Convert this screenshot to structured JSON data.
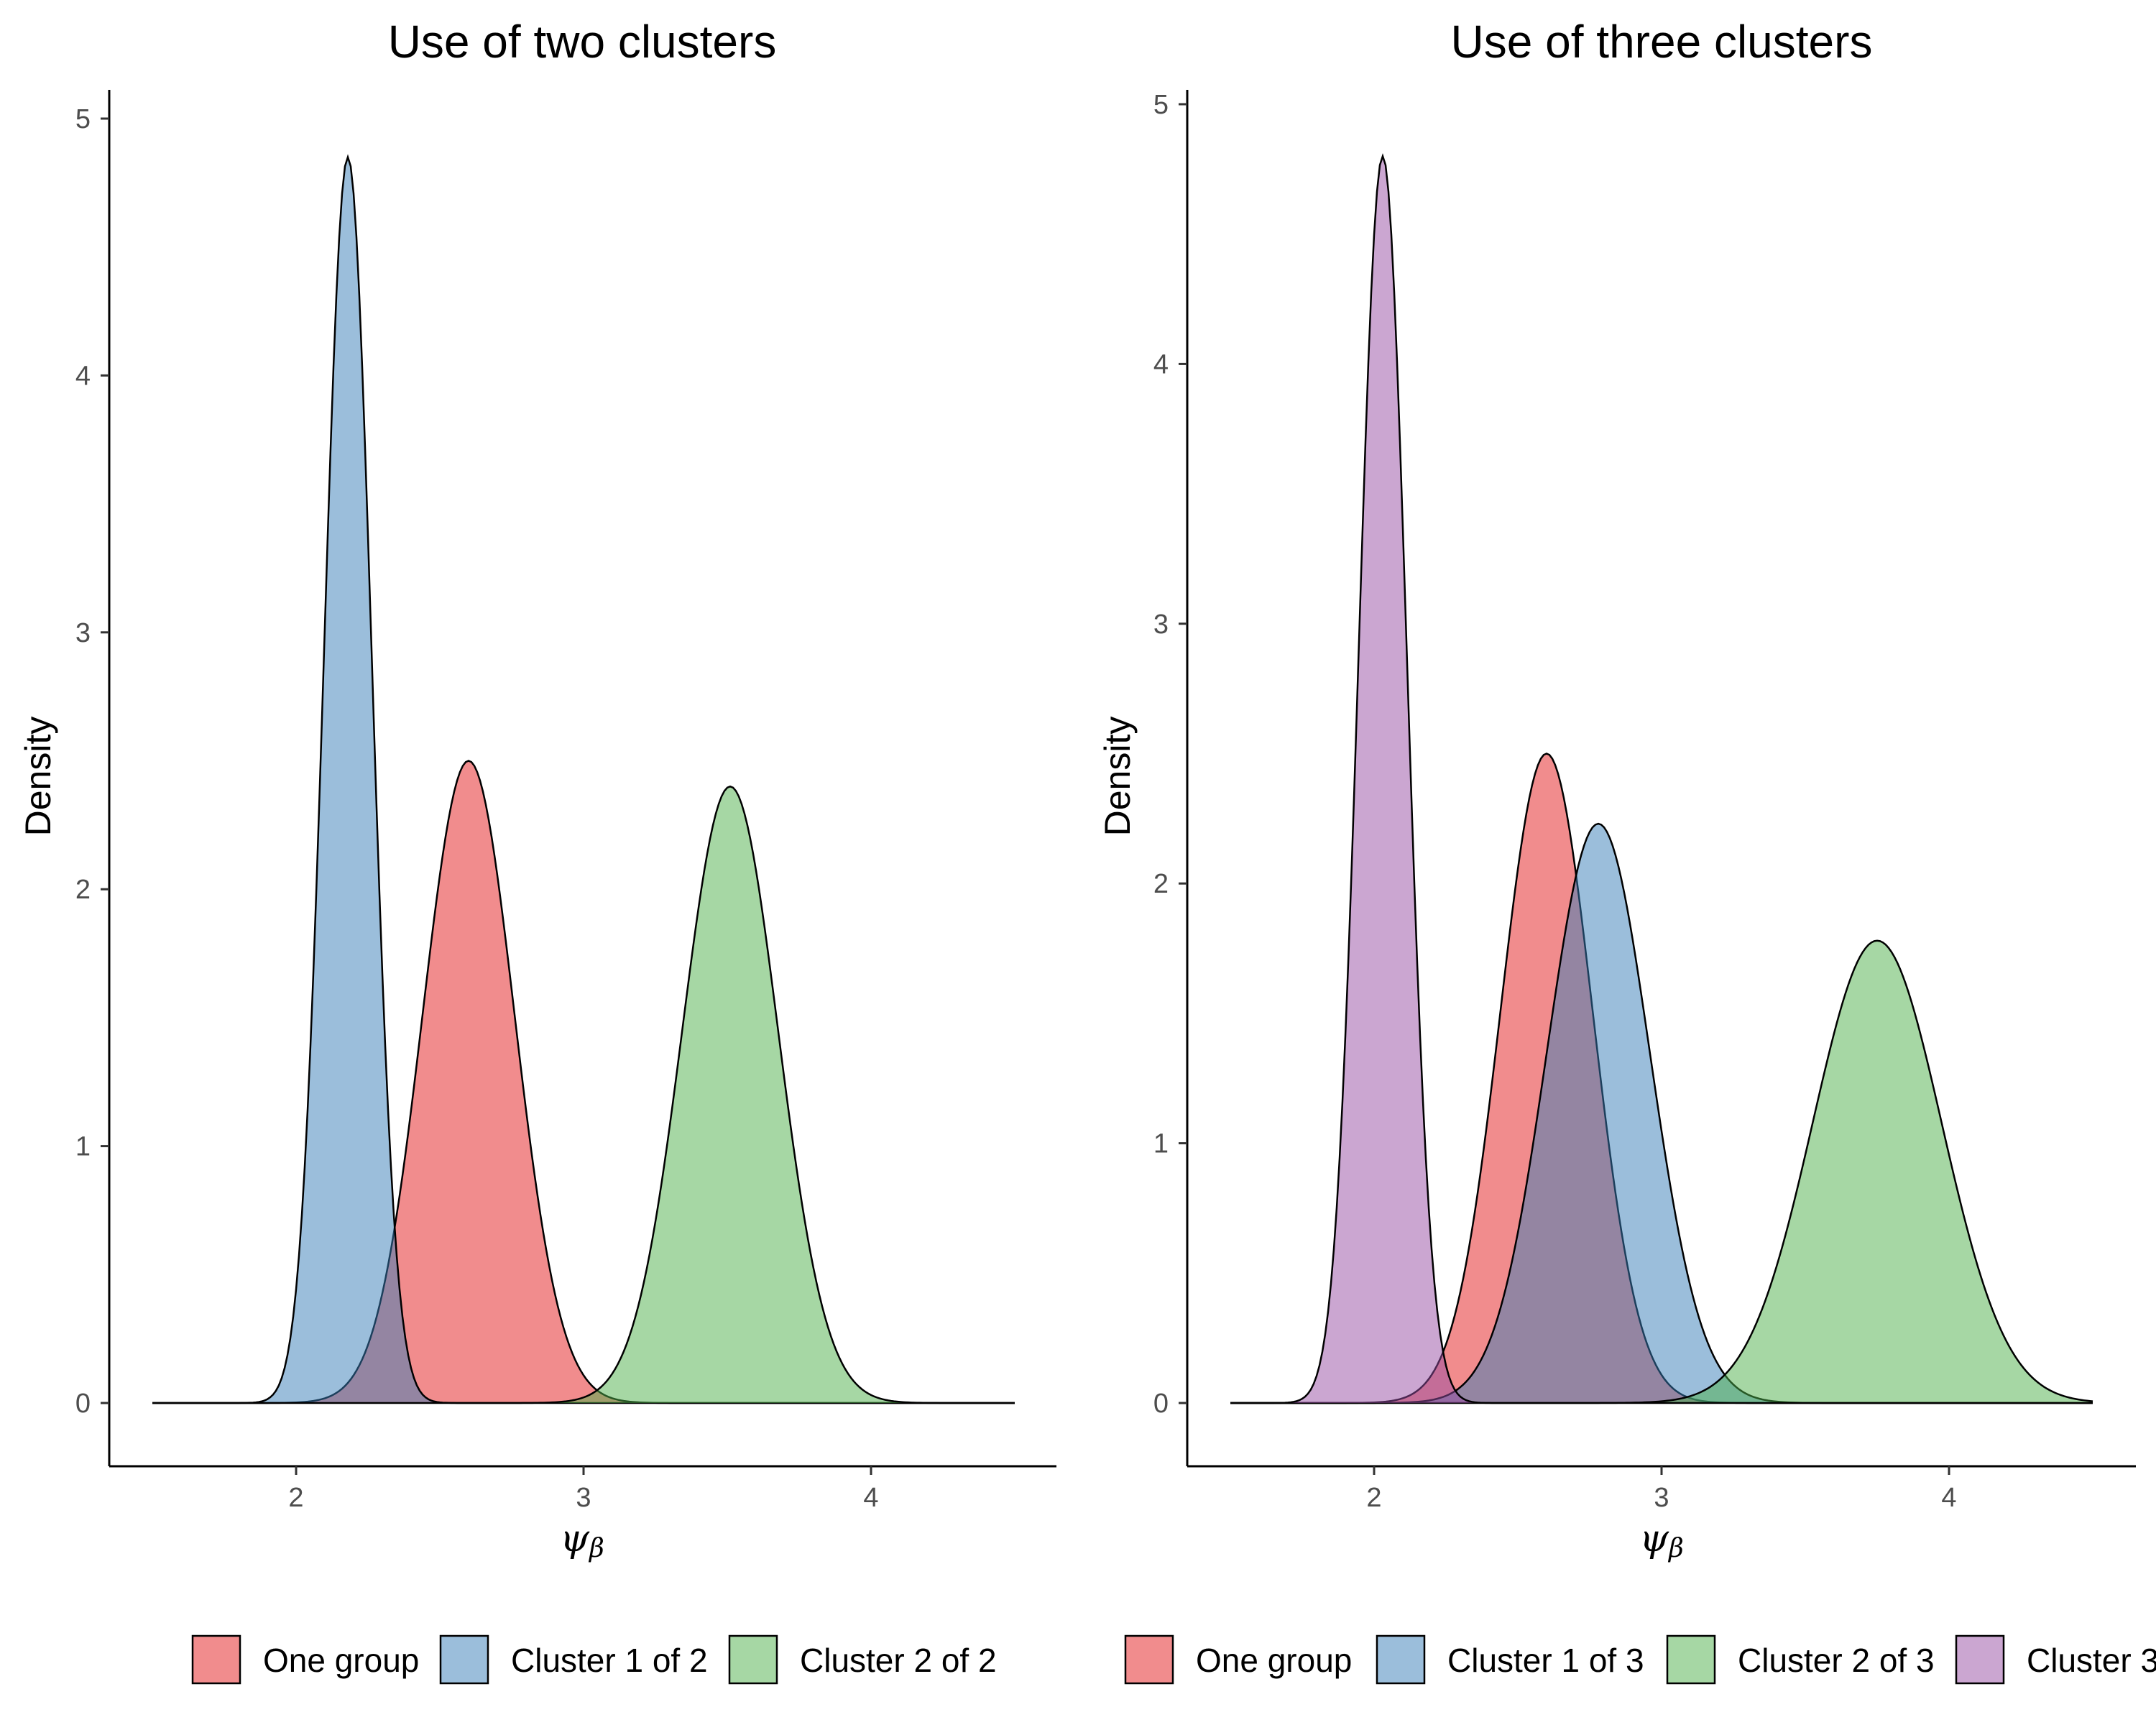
{
  "chart_data": [
    {
      "type": "area",
      "title": "Use of two clusters",
      "xlabel": "ψ",
      "xlabel_sub": "β",
      "ylabel": "Density",
      "xlim": [
        1.5,
        4.5
      ],
      "ylim": [
        0,
        5
      ],
      "xticks": [
        "2",
        "3",
        "4"
      ],
      "yticks": [
        "0",
        "1",
        "2",
        "3",
        "4",
        "5"
      ],
      "grid": false,
      "legend_position": "bottom",
      "series": [
        {
          "name": "One group",
          "color": "#e41a1c",
          "mean": 2.6,
          "peak": 2.5
        },
        {
          "name": "Cluster 1 of 2",
          "color": "#377eb8",
          "mean": 2.18,
          "peak": 4.85
        },
        {
          "name": "Cluster 2 of 2",
          "color": "#4daf4a",
          "mean": 3.51,
          "peak": 2.4
        }
      ]
    },
    {
      "type": "area",
      "title": "Use of three clusters",
      "xlabel": "ψ",
      "xlabel_sub": "β",
      "ylabel": "Density",
      "xlim": [
        1.5,
        4.5
      ],
      "ylim": [
        0,
        5
      ],
      "xticks": [
        "2",
        "3",
        "4"
      ],
      "yticks": [
        "0",
        "1",
        "2",
        "3",
        "4",
        "5"
      ],
      "grid": false,
      "legend_position": "bottom",
      "series": [
        {
          "name": "One group",
          "color": "#e41a1c",
          "mean": 2.6,
          "peak": 2.5
        },
        {
          "name": "Cluster 1 of 3",
          "color": "#377eb8",
          "mean": 2.78,
          "peak": 2.23
        },
        {
          "name": "Cluster 2 of 3",
          "color": "#4daf4a",
          "mean": 3.75,
          "peak": 1.78
        },
        {
          "name": "Cluster 3",
          "color": "#984ea3",
          "mean": 2.03,
          "peak": 4.8
        }
      ]
    }
  ]
}
